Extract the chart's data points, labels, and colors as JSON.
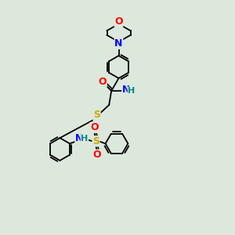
{
  "background_color": "#dce8dc",
  "line_color": "#000000",
  "figsize": [
    3.0,
    3.0
  ],
  "dpi": 100,
  "atom_colors": {
    "O": "#ff0000",
    "N": "#0000ff",
    "S": "#ccaa00",
    "H": "#008888",
    "C": "#000000"
  },
  "lw": 1.3,
  "ring_r": 0.48
}
